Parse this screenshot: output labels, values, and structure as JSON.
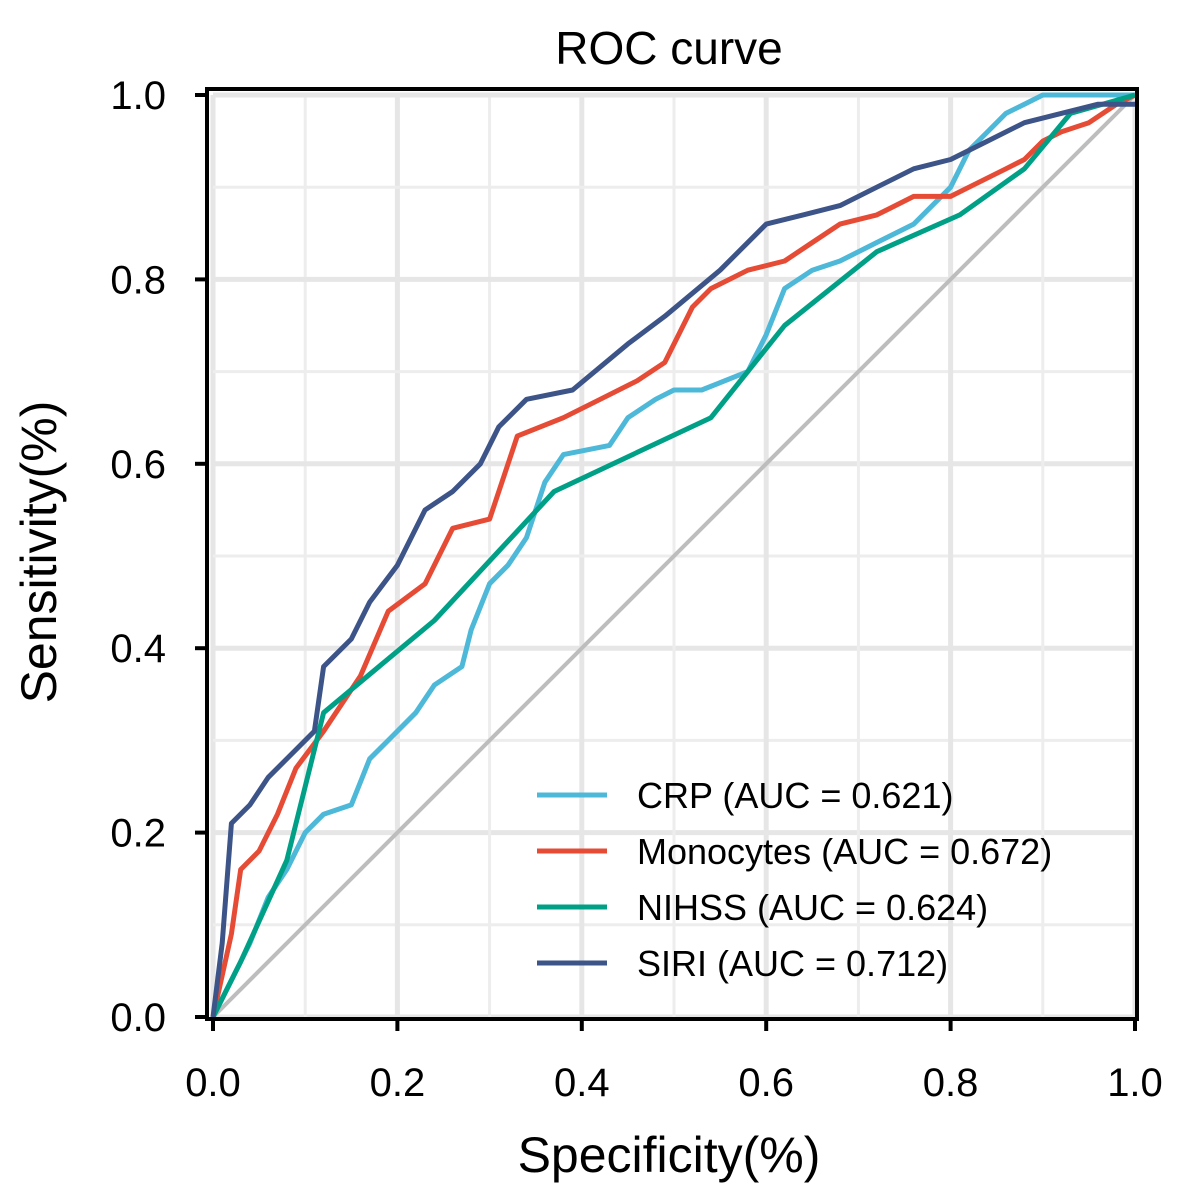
{
  "chart_data": {
    "type": "line",
    "title": "ROC curve",
    "xlabel": "Specificity(%)",
    "ylabel": "Sensitivity(%)",
    "xlim": [
      0,
      1
    ],
    "ylim": [
      0,
      1
    ],
    "xticks": [
      {
        "value": 0.0,
        "label": "0.0"
      },
      {
        "value": 0.2,
        "label": "0.2"
      },
      {
        "value": 0.4,
        "label": "0.4"
      },
      {
        "value": 0.6,
        "label": "0.6"
      },
      {
        "value": 0.8,
        "label": "0.8"
      },
      {
        "value": 1.0,
        "label": "1.0"
      }
    ],
    "yticks": [
      {
        "value": 0.0,
        "label": "0.0"
      },
      {
        "value": 0.2,
        "label": "0.2"
      },
      {
        "value": 0.4,
        "label": "0.4"
      },
      {
        "value": 0.6,
        "label": "0.6"
      },
      {
        "value": 0.8,
        "label": "0.8"
      },
      {
        "value": 1.0,
        "label": "1.0"
      }
    ],
    "grid": true,
    "legend_position": "bottom-right",
    "reference_line": {
      "x": [
        0,
        1
      ],
      "y": [
        0,
        1
      ],
      "color": "#bdbdbd"
    },
    "series": [
      {
        "name": "CRP (AUC = 0.621)",
        "color": "#4db8d8",
        "x": [
          0,
          0.02,
          0.04,
          0.06,
          0.08,
          0.1,
          0.12,
          0.15,
          0.17,
          0.19,
          0.22,
          0.24,
          0.27,
          0.28,
          0.3,
          0.32,
          0.34,
          0.36,
          0.38,
          0.43,
          0.45,
          0.48,
          0.5,
          0.53,
          0.58,
          0.6,
          0.62,
          0.65,
          0.68,
          0.72,
          0.76,
          0.78,
          0.8,
          0.82,
          0.84,
          0.86,
          0.88,
          0.9,
          0.95,
          1.0
        ],
        "y": [
          0,
          0.04,
          0.08,
          0.13,
          0.16,
          0.2,
          0.22,
          0.23,
          0.28,
          0.3,
          0.33,
          0.36,
          0.38,
          0.42,
          0.47,
          0.49,
          0.52,
          0.58,
          0.61,
          0.62,
          0.65,
          0.67,
          0.68,
          0.68,
          0.7,
          0.74,
          0.79,
          0.81,
          0.82,
          0.84,
          0.86,
          0.88,
          0.9,
          0.94,
          0.96,
          0.98,
          0.99,
          1.0,
          1.0,
          1.0
        ]
      },
      {
        "name": "Monocytes (AUC = 0.672)",
        "color": "#e64b35",
        "x": [
          0,
          0.02,
          0.03,
          0.05,
          0.07,
          0.09,
          0.12,
          0.16,
          0.19,
          0.23,
          0.26,
          0.3,
          0.33,
          0.38,
          0.42,
          0.46,
          0.49,
          0.52,
          0.54,
          0.58,
          0.62,
          0.65,
          0.68,
          0.72,
          0.76,
          0.8,
          0.82,
          0.86,
          0.88,
          0.9,
          0.92,
          0.95,
          0.98,
          1.0
        ],
        "y": [
          0,
          0.09,
          0.16,
          0.18,
          0.22,
          0.27,
          0.31,
          0.37,
          0.44,
          0.47,
          0.53,
          0.54,
          0.63,
          0.65,
          0.67,
          0.69,
          0.71,
          0.77,
          0.79,
          0.81,
          0.82,
          0.84,
          0.86,
          0.87,
          0.89,
          0.89,
          0.9,
          0.92,
          0.93,
          0.95,
          0.96,
          0.97,
          0.99,
          1.0
        ]
      },
      {
        "name": "NIHSS (AUC = 0.624)",
        "color": "#00a087",
        "x": [
          0,
          0.03,
          0.08,
          0.12,
          0.24,
          0.37,
          0.54,
          0.62,
          0.72,
          0.81,
          0.88,
          0.93,
          1.0
        ],
        "y": [
          0,
          0.06,
          0.17,
          0.33,
          0.43,
          0.57,
          0.65,
          0.75,
          0.83,
          0.87,
          0.92,
          0.98,
          1.0
        ]
      },
      {
        "name": "SIRI (AUC = 0.712)",
        "color": "#3c5488",
        "x": [
          0,
          0.01,
          0.02,
          0.04,
          0.06,
          0.09,
          0.11,
          0.12,
          0.15,
          0.17,
          0.2,
          0.23,
          0.26,
          0.29,
          0.31,
          0.34,
          0.39,
          0.45,
          0.49,
          0.55,
          0.6,
          0.64,
          0.68,
          0.72,
          0.76,
          0.8,
          0.84,
          0.88,
          0.92,
          0.96,
          1.0
        ],
        "y": [
          0,
          0.08,
          0.21,
          0.23,
          0.26,
          0.29,
          0.31,
          0.38,
          0.41,
          0.45,
          0.49,
          0.55,
          0.57,
          0.6,
          0.64,
          0.67,
          0.68,
          0.73,
          0.76,
          0.81,
          0.86,
          0.87,
          0.88,
          0.9,
          0.92,
          0.93,
          0.95,
          0.97,
          0.98,
          0.99,
          0.99
        ]
      }
    ]
  }
}
